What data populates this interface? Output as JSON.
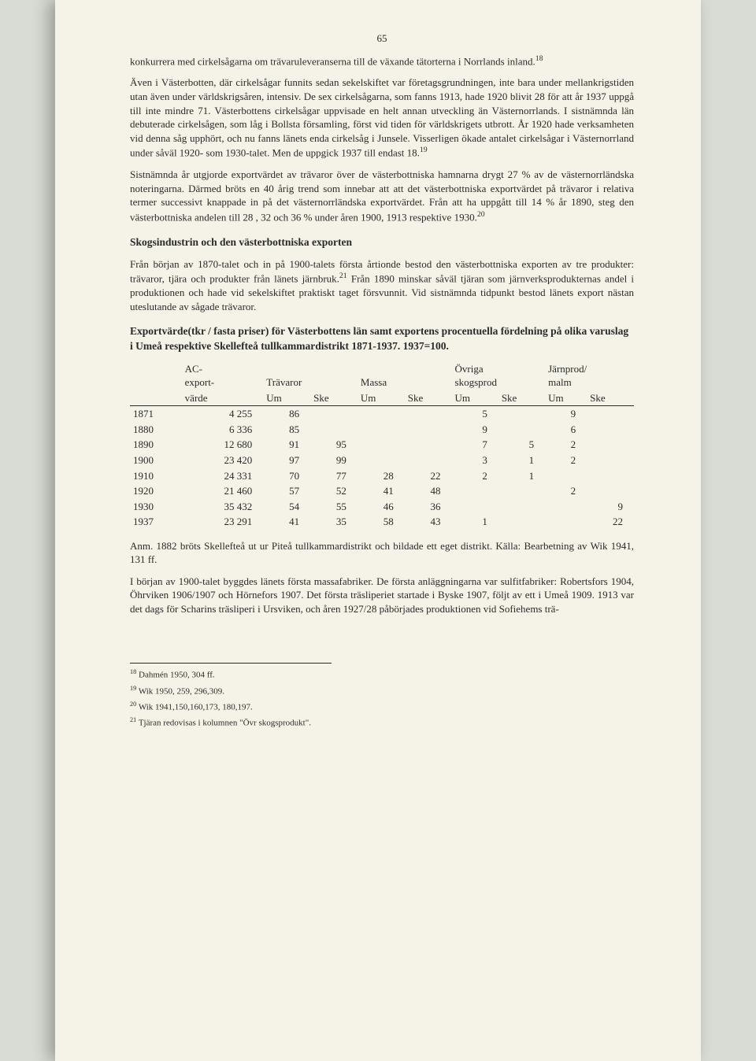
{
  "pageNumber": "65",
  "paragraphs": {
    "p1": "konkurrera med cirkelsågarna om trävaruleveranserna till de växande tätorterna i Norrlands inland.",
    "p1_sup": "18",
    "p2": "Även i Västerbotten, där cirkelsågar funnits sedan sekelskiftet var företagsgrundningen, inte bara under mellankrigstiden utan även under världskrigsåren, intensiv. De sex cirkelsågarna, som fanns 1913, hade 1920 blivit 28 för att år 1937 uppgå till inte mindre 71. Västerbottens cirkelsågar uppvisade en helt annan utveckling än Västernorrlands. I sistnämnda län debuterade cirkelsågen, som låg i Bollsta församling, först vid tiden för världskrigets utbrott. År 1920 hade verksamheten vid denna såg upphört, och nu fanns länets enda cirkelsåg i Junsele. Visserligen ökade antalet cirkelsågar i Västernorrland under såväl 1920- som 1930-talet. Men de uppgick 1937 till endast 18.",
    "p2_sup": "19",
    "p3": "Sistnämnda år utgjorde exportvärdet av trävaror över de västerbottniska hamnarna drygt 27 % av de västernorrländska noteringarna. Därmed bröts en 40 årig trend som innebar att att det västerbottniska exportvärdet på trävaror i relativa termer successivt knappade in på det västernorrländska exportvärdet. Från att ha uppgått till 14 % år 1890, steg den västerbottniska andelen till 28 , 32 och 36 % under åren 1900, 1913 respektive 1930.",
    "p3_sup": "20",
    "heading1": "Skogsindustrin och den västerbottniska exporten",
    "p4a": "Från början av 1870-talet och in på 1900-talets första årtionde bestod den västerbottniska exporten av tre produkter: trävaror, tjära och produkter från länets järnbruk.",
    "p4_sup": "21",
    "p4b": " Från 1890 minskar såväl tjäran som järnverksprodukternas andel i produktionen och hade vid sekelskiftet praktiskt taget försvunnit. Vid sistnämnda tidpunkt bestod länets export nästan uteslutande av sågade trävaror.",
    "tableTitle": "Exportvärde(tkr / fasta priser) för Västerbottens län samt exportens procentuella fördelning på olika varuslag i Umeå respektive Skellefteå tullkammardistrikt 1871-1937. 1937=100.",
    "note": "Anm. 1882 bröts Skellefteå ut ur Piteå tullkammardistrikt och bildade ett eget distrikt. Källa: Bearbetning av Wik 1941, 131 ff.",
    "p5": "I början av 1900-talet byggdes länets första massafabriker. De första anläggningarna var sulfitfabriker: Robertsfors 1904, Öhrviken 1906/1907 och Hörnefors 1907. Det första träsliperiet startade i Byske 1907, följt av ett i Umeå 1909. 1913 var det dags för Scharins träsliperi i Ursviken, och åren 1927/28 påbörjades produktionen vid Sofiehems trä-"
  },
  "table": {
    "headers": {
      "ac": "AC-export-värde",
      "travaror": "Trävaror",
      "massa": "Massa",
      "ovriga": "Övriga skogsprod",
      "jarnprod": "Järnprod/ malm",
      "um": "Um",
      "ske": "Ske"
    },
    "rows": [
      {
        "year": "1871",
        "ac": "4 255",
        "tUm": "86",
        "tSke": "",
        "mUm": "",
        "mSke": "",
        "oUm": "5",
        "oSke": "",
        "jUm": "9",
        "jSke": ""
      },
      {
        "year": "1880",
        "ac": "6 336",
        "tUm": "85",
        "tSke": "",
        "mUm": "",
        "mSke": "",
        "oUm": "9",
        "oSke": "",
        "jUm": "6",
        "jSke": ""
      },
      {
        "year": "1890",
        "ac": "12 680",
        "tUm": "91",
        "tSke": "95",
        "mUm": "",
        "mSke": "",
        "oUm": "7",
        "oSke": "5",
        "jUm": "2",
        "jSke": ""
      },
      {
        "year": "1900",
        "ac": "23 420",
        "tUm": "97",
        "tSke": "99",
        "mUm": "",
        "mSke": "",
        "oUm": "3",
        "oSke": "1",
        "jUm": "2",
        "jSke": ""
      },
      {
        "year": "1910",
        "ac": "24 331",
        "tUm": "70",
        "tSke": "77",
        "mUm": "28",
        "mSke": "22",
        "oUm": "2",
        "oSke": "1",
        "jUm": "",
        "jSke": ""
      },
      {
        "year": "1920",
        "ac": "21 460",
        "tUm": "57",
        "tSke": "52",
        "mUm": "41",
        "mSke": "48",
        "oUm": "",
        "oSke": "",
        "jUm": "2",
        "jSke": ""
      },
      {
        "year": "1930",
        "ac": "35 432",
        "tUm": "54",
        "tSke": "55",
        "mUm": "46",
        "mSke": "36",
        "oUm": "",
        "oSke": "",
        "jUm": "",
        "jSke": "9"
      },
      {
        "year": "1937",
        "ac": "23 291",
        "tUm": "41",
        "tSke": "35",
        "mUm": "58",
        "mSke": "43",
        "oUm": "1",
        "oSke": "",
        "jUm": "",
        "jSke": "22"
      }
    ]
  },
  "footnotes": {
    "f18": "Dahmén 1950, 304 ff.",
    "f19": "Wik 1950, 259, 296,309.",
    "f20": "Wik 1941,150,160,173, 180,197.",
    "f21": "Tjäran redovisas i kolumnen \"Övr skogsprodukt\"."
  }
}
